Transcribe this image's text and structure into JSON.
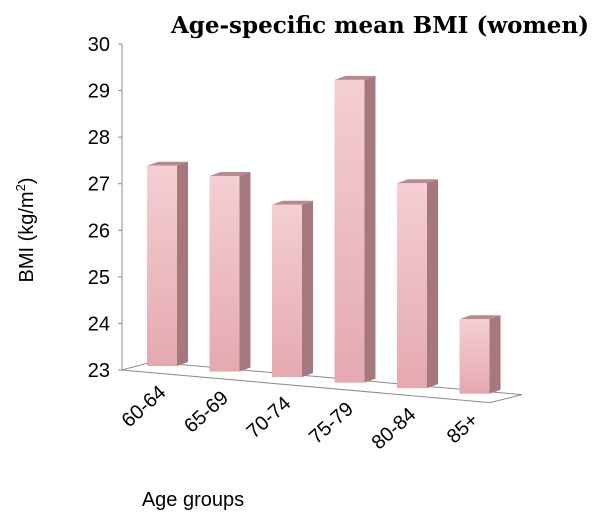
{
  "chart_data": {
    "type": "bar",
    "title": "Age-specific mean BMI (women)",
    "xlabel": "Age groups",
    "ylabel_main": "BMI (kg/m",
    "ylabel_sup": "2",
    "ylabel_close": ")",
    "categories": [
      "60-64",
      "65-69",
      "70-74",
      "75-79",
      "80-84",
      "85+"
    ],
    "values": [
      27.3,
      27.2,
      26.7,
      29.5,
      27.4,
      24.6
    ],
    "ylim": [
      23,
      30
    ],
    "yticks": [
      "23",
      "24",
      "25",
      "26",
      "27",
      "28",
      "29",
      "30"
    ],
    "grid": false,
    "legend": "none",
    "colors": {
      "front_top": "#f3cfd3",
      "front_bottom": "#e5a9b0",
      "side": "#a6787d",
      "top": "#b8898f",
      "axis": "#8c8c8c"
    }
  }
}
